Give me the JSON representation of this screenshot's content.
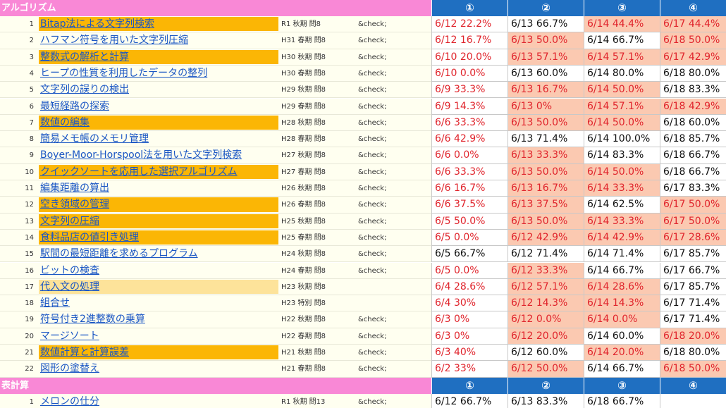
{
  "colors": {
    "section_header_bg": "#f988d6",
    "score_header_bg": "#1f6fc1",
    "highlight_orange": "#fbb605",
    "highlight_light": "#fde39a",
    "score_highlight": "#fbc9b1",
    "score_red": "#e0242c",
    "link_blue": "#1a56c4"
  },
  "sections": [
    {
      "label": "アルゴリズム",
      "columns": [
        "①",
        "②",
        "③",
        "④"
      ],
      "rows": [
        {
          "num": "1",
          "title": "Bitap法による文字列検索",
          "highlight": "orange",
          "exam": "R1 秋期 問8",
          "check": "&check;",
          "scores": [
            {
              "text": "6/12 22.2%",
              "style": "red"
            },
            {
              "text": "6/13 66.7%",
              "style": "black"
            },
            {
              "text": "6/14 44.4%",
              "style": "red-hi"
            },
            {
              "text": "6/17 44.4%",
              "style": "red-hi"
            }
          ]
        },
        {
          "num": "2",
          "title": "ハフマン符号を用いた文字列圧縮",
          "highlight": "none",
          "exam": "H31 春期 問8",
          "check": "&check;",
          "scores": [
            {
              "text": "6/12 16.7%",
              "style": "red"
            },
            {
              "text": "6/13 50.0%",
              "style": "red-hi"
            },
            {
              "text": "6/14 66.7%",
              "style": "black"
            },
            {
              "text": "6/18 50.0%",
              "style": "red-hi"
            }
          ]
        },
        {
          "num": "3",
          "title": "整数式の解析と計算",
          "highlight": "orange",
          "exam": "H30 秋期 問8",
          "check": "&check;",
          "scores": [
            {
              "text": "6/10 20.0%",
              "style": "red"
            },
            {
              "text": "6/13 57.1%",
              "style": "red-hi"
            },
            {
              "text": "6/14 57.1%",
              "style": "red-hi"
            },
            {
              "text": "6/17 42.9%",
              "style": "red-hi"
            }
          ]
        },
        {
          "num": "4",
          "title": "ヒープの性質を利用したデータの整列",
          "highlight": "none",
          "exam": "H30 春期 問8",
          "check": "&check;",
          "scores": [
            {
              "text": "6/10 0.0%",
              "style": "red"
            },
            {
              "text": "6/13 60.0%",
              "style": "black"
            },
            {
              "text": "6/14 80.0%",
              "style": "black"
            },
            {
              "text": "6/18 80.0%",
              "style": "black"
            }
          ]
        },
        {
          "num": "5",
          "title": "文字列の誤りの検出",
          "highlight": "none",
          "exam": "H29 秋期 問8",
          "check": "&check;",
          "scores": [
            {
              "text": "6/9 33.3%",
              "style": "red"
            },
            {
              "text": "6/13 16.7%",
              "style": "red-hi"
            },
            {
              "text": "6/14 50.0%",
              "style": "red-hi"
            },
            {
              "text": "6/18 83.3%",
              "style": "black"
            }
          ]
        },
        {
          "num": "6",
          "title": "最短経路の探索",
          "highlight": "none",
          "exam": "H29 春期 問8",
          "check": "&check;",
          "scores": [
            {
              "text": "6/9 14.3%",
              "style": "red"
            },
            {
              "text": "6/13 0%",
              "style": "red-hi"
            },
            {
              "text": "6/14 57.1%",
              "style": "red-hi"
            },
            {
              "text": "6/18 42.9%",
              "style": "red-hi"
            }
          ]
        },
        {
          "num": "7",
          "title": "数値の編集",
          "highlight": "orange",
          "exam": "H28 秋期 問8",
          "check": "&check;",
          "scores": [
            {
              "text": "6/6 33.3%",
              "style": "red"
            },
            {
              "text": "6/13 50.0%",
              "style": "red-hi"
            },
            {
              "text": "6/14 50.0%",
              "style": "red-hi"
            },
            {
              "text": "6/18 60.0%",
              "style": "black"
            }
          ]
        },
        {
          "num": "8",
          "title": "簡易メモ帳のメモリ管理",
          "highlight": "none",
          "exam": "H28 春期 問8",
          "check": "&check;",
          "scores": [
            {
              "text": "6/6 42.9%",
              "style": "red"
            },
            {
              "text": "6/13 71.4%",
              "style": "black"
            },
            {
              "text": "6/14 100.0%",
              "style": "black"
            },
            {
              "text": "6/18 85.7%",
              "style": "black"
            }
          ]
        },
        {
          "num": "9",
          "title": "Boyer-Moor-Horspool法を用いた文字列検索",
          "highlight": "none",
          "exam": "H27 秋期 問8",
          "check": "&check;",
          "scores": [
            {
              "text": "6/6 0.0%",
              "style": "red"
            },
            {
              "text": "6/13 33.3%",
              "style": "red-hi"
            },
            {
              "text": "6/14 83.3%",
              "style": "black"
            },
            {
              "text": "6/18 66.7%",
              "style": "black"
            }
          ]
        },
        {
          "num": "10",
          "title": "クイックソートを応用した選択アルゴリズム",
          "highlight": "orange",
          "exam": "H27 春期 問8",
          "check": "&check;",
          "scores": [
            {
              "text": "6/6 33.3%",
              "style": "red"
            },
            {
              "text": "6/13 50.0%",
              "style": "red-hi"
            },
            {
              "text": "6/14 50.0%",
              "style": "red-hi"
            },
            {
              "text": "6/18 66.7%",
              "style": "black"
            }
          ]
        },
        {
          "num": "11",
          "title": "編集距離の算出",
          "highlight": "none",
          "exam": "H26 秋期 問8",
          "check": "&check;",
          "scores": [
            {
              "text": "6/6 16.7%",
              "style": "red"
            },
            {
              "text": "6/13 16.7%",
              "style": "red-hi"
            },
            {
              "text": "6/14 33.3%",
              "style": "red-hi"
            },
            {
              "text": "6/17 83.3%",
              "style": "black"
            }
          ]
        },
        {
          "num": "12",
          "title": "空き領域の管理",
          "highlight": "orange",
          "exam": "H26 春期 問8",
          "check": "&check;",
          "scores": [
            {
              "text": "6/6 37.5%",
              "style": "red"
            },
            {
              "text": "6/13 37.5%",
              "style": "red-hi"
            },
            {
              "text": "6/14 62.5%",
              "style": "black"
            },
            {
              "text": "6/17 50.0%",
              "style": "red-hi"
            }
          ]
        },
        {
          "num": "13",
          "title": "文字列の圧縮",
          "highlight": "orange",
          "exam": "H25 秋期 問8",
          "check": "&check;",
          "scores": [
            {
              "text": "6/5 50.0%",
              "style": "red"
            },
            {
              "text": "6/13 50.0%",
              "style": "red-hi"
            },
            {
              "text": "6/14 33.3%",
              "style": "red-hi"
            },
            {
              "text": "6/17 50.0%",
              "style": "red-hi"
            }
          ]
        },
        {
          "num": "14",
          "title": "食料品店の値引き処理",
          "highlight": "orange",
          "exam": "H25 春期 問8",
          "check": "&check;",
          "scores": [
            {
              "text": "6/5 0.0%",
              "style": "red"
            },
            {
              "text": "6/12 42.9%",
              "style": "red-hi"
            },
            {
              "text": "6/14 42.9%",
              "style": "red-hi"
            },
            {
              "text": "6/17 28.6%",
              "style": "red-hi"
            }
          ]
        },
        {
          "num": "15",
          "title": "駅間の最短距離を求めるプログラム",
          "highlight": "none",
          "exam": "H24 秋期 問8",
          "check": "&check;",
          "scores": [
            {
              "text": "6/5 66.7%",
              "style": "black"
            },
            {
              "text": "6/12 71.4%",
              "style": "black"
            },
            {
              "text": "6/14 71.4%",
              "style": "black"
            },
            {
              "text": "6/17 85.7%",
              "style": "black"
            }
          ]
        },
        {
          "num": "16",
          "title": "ビットの検査",
          "highlight": "none",
          "exam": "H24 春期 問8",
          "check": "&check;",
          "scores": [
            {
              "text": "6/5 0.0%",
              "style": "red"
            },
            {
              "text": "6/12 33.3%",
              "style": "red-hi"
            },
            {
              "text": "6/14 66.7%",
              "style": "black"
            },
            {
              "text": "6/17 66.7%",
              "style": "black"
            }
          ]
        },
        {
          "num": "17",
          "title": "代入文の処理",
          "highlight": "light",
          "exam": "H23 秋期 問8",
          "check": "",
          "scores": [
            {
              "text": "6/4 28.6%",
              "style": "red"
            },
            {
              "text": "6/12 57.1%",
              "style": "red-hi"
            },
            {
              "text": "6/14 28.6%",
              "style": "red-hi"
            },
            {
              "text": "6/17 85.7%",
              "style": "black"
            }
          ]
        },
        {
          "num": "18",
          "title": "組合せ",
          "highlight": "none",
          "exam": "H23 特別 問8",
          "check": "",
          "scores": [
            {
              "text": "6/4 30%",
              "style": "red"
            },
            {
              "text": "6/12 14.3%",
              "style": "red-hi"
            },
            {
              "text": "6/14 14.3%",
              "style": "red-hi"
            },
            {
              "text": "6/17 71.4%",
              "style": "black"
            }
          ]
        },
        {
          "num": "19",
          "title": "符号付き2進整数の乗算",
          "highlight": "none",
          "exam": "H22 秋期 問8",
          "check": "&check;",
          "scores": [
            {
              "text": "6/3 0%",
              "style": "red"
            },
            {
              "text": "6/12 0.0%",
              "style": "red-hi"
            },
            {
              "text": "6/14 0.0%",
              "style": "red-hi"
            },
            {
              "text": "6/17 71.4%",
              "style": "black"
            }
          ]
        },
        {
          "num": "20",
          "title": "マージソート",
          "highlight": "none",
          "exam": "H22 春期 問8",
          "check": "&check;",
          "scores": [
            {
              "text": "6/3 0%",
              "style": "red"
            },
            {
              "text": "6/12 20.0%",
              "style": "red-hi"
            },
            {
              "text": "6/14 60.0%",
              "style": "black"
            },
            {
              "text": "6/18 20.0%",
              "style": "red-hi"
            }
          ]
        },
        {
          "num": "21",
          "title": "数値計算と計算誤差",
          "highlight": "orange",
          "exam": "H21 秋期 問8",
          "check": "&check;",
          "scores": [
            {
              "text": "6/3 40%",
              "style": "red"
            },
            {
              "text": "6/12 60.0%",
              "style": "black"
            },
            {
              "text": "6/14 20.0%",
              "style": "red-hi"
            },
            {
              "text": "6/18 80.0%",
              "style": "black"
            }
          ]
        },
        {
          "num": "22",
          "title": "図形の塗替え",
          "highlight": "none",
          "exam": "H21 春期 問8",
          "check": "&check;",
          "scores": [
            {
              "text": "6/2 33%",
              "style": "red"
            },
            {
              "text": "6/12 50.0%",
              "style": "red-hi"
            },
            {
              "text": "6/14 66.7%",
              "style": "black"
            },
            {
              "text": "6/18 50.0%",
              "style": "red-hi"
            }
          ]
        }
      ]
    },
    {
      "label": "表計算",
      "columns": [
        "①",
        "②",
        "③",
        "④"
      ],
      "rows": [
        {
          "num": "1",
          "title": "メロンの仕分",
          "highlight": "none",
          "exam": "R1 秋期 問13",
          "check": "&check;",
          "scores": [
            {
              "text": "6/12 66.7%",
              "style": "black"
            },
            {
              "text": "6/13 83.3%",
              "style": "black"
            },
            {
              "text": "6/18 66.7%",
              "style": "black"
            },
            {
              "text": "",
              "style": "black"
            }
          ]
        }
      ]
    }
  ]
}
